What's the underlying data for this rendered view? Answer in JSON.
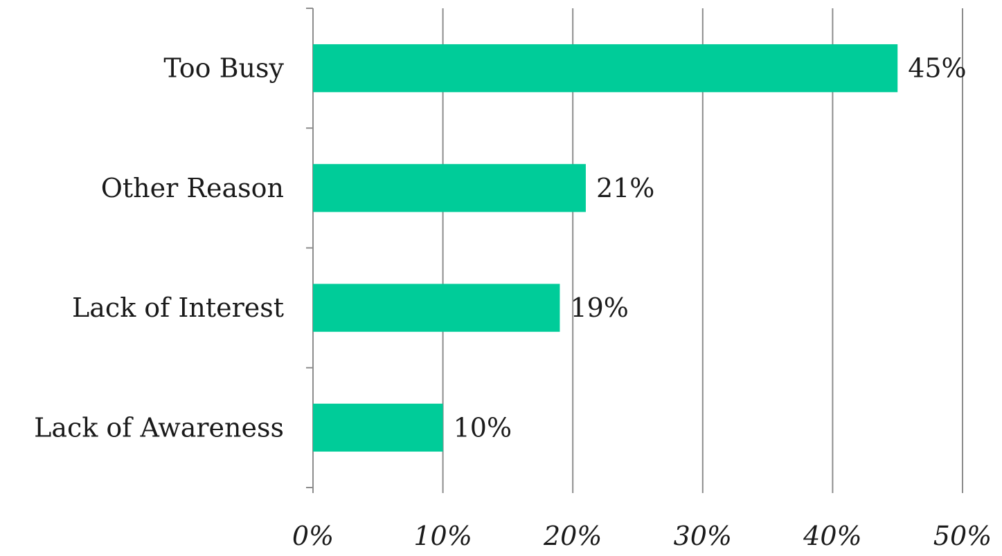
{
  "chart_data": {
    "type": "bar",
    "orientation": "horizontal",
    "categories": [
      "Too Busy",
      "Other Reason",
      "Lack of Interest",
      "Lack of Awareness"
    ],
    "values": [
      45,
      21,
      19,
      10
    ],
    "data_labels": [
      "45%",
      "21%",
      "19%",
      "10%"
    ],
    "xlim": [
      0,
      50
    ],
    "xticks": [
      0,
      10,
      20,
      30,
      40,
      50
    ],
    "xtick_labels": [
      "0%",
      "10%",
      "20%",
      "30%",
      "40%",
      "50%"
    ],
    "title": "",
    "xlabel": "",
    "ylabel": "",
    "grid": true,
    "legend": "none",
    "colors": {
      "bar": "#00CC99",
      "grid": "#8c8c8c",
      "axis": "#8c8c8c",
      "text": "#1a1a1a"
    }
  }
}
